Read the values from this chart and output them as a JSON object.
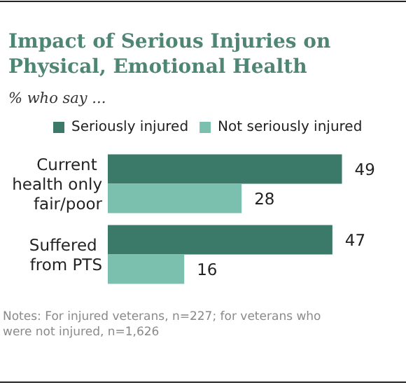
{
  "chart_data": {
    "type": "bar",
    "orientation": "horizontal",
    "title": "Impact of Serious Injuries on Physical, Emotional Health",
    "subtitle": "% who say ...",
    "categories": [
      "Current health only fair/poor",
      "Suffered from PTS"
    ],
    "series": [
      {
        "name": "Seriously injured",
        "color": "#3b7a68",
        "values": [
          49,
          47
        ]
      },
      {
        "name": "Not seriously injured",
        "color": "#7bc0ae",
        "values": [
          28,
          16
        ]
      }
    ],
    "data_labels": true,
    "legend": "top",
    "annotations": [
      "Notes: For injured veterans, n=227; for veterans who were not injured, n=1,626"
    ]
  }
}
